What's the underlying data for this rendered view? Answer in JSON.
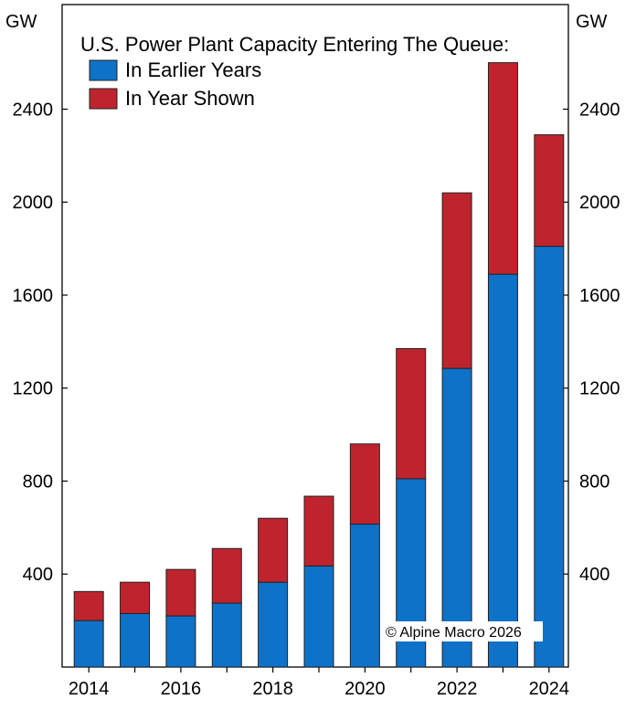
{
  "chart_data": {
    "type": "bar",
    "stacked": true,
    "title": "U.S. Power Plant Capacity Entering The Queue:",
    "ylabel_left": "GW",
    "ylabel_right": "GW",
    "categories": [
      "2014",
      "2015",
      "2016",
      "2017",
      "2018",
      "2019",
      "2020",
      "2021",
      "2022",
      "2023",
      "2024"
    ],
    "x_tick_labels": [
      "2014",
      "2016",
      "2018",
      "2020",
      "2022",
      "2024"
    ],
    "y_tick_labels": [
      "400",
      "800",
      "1200",
      "1600",
      "2000",
      "2400"
    ],
    "y_ticks": [
      400,
      800,
      1200,
      1600,
      2000,
      2400
    ],
    "ylim": [
      0,
      2850
    ],
    "series": [
      {
        "name": "In Earlier Years",
        "color": "#0e72c9",
        "values": [
          200,
          230,
          220,
          275,
          365,
          435,
          615,
          810,
          1285,
          1690,
          1810
        ]
      },
      {
        "name": "In Year Shown",
        "color": "#bf242e",
        "values": [
          125,
          135,
          200,
          235,
          275,
          300,
          345,
          560,
          755,
          910,
          480
        ]
      }
    ],
    "legend_placement": "top-left",
    "grid": false,
    "annotation": "© Alpine Macro 2026"
  }
}
